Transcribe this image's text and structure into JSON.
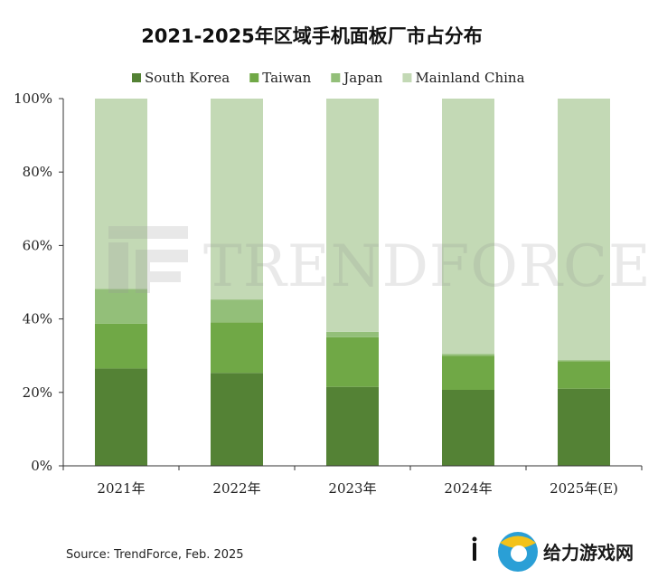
{
  "chart_data": {
    "type": "bar",
    "stacked": true,
    "title": "2021-2025年区域手机面板厂市占分布",
    "categories": [
      "2021年",
      "2022年",
      "2023年",
      "2024年",
      "2025年(E)"
    ],
    "series": [
      {
        "name": "South Korea",
        "color": "#548235",
        "values": [
          26.5,
          25.3,
          21.5,
          20.7,
          21.0
        ]
      },
      {
        "name": "Taiwan",
        "color": "#70a846",
        "values": [
          12.2,
          13.8,
          13.5,
          9.3,
          7.5
        ]
      },
      {
        "name": "Japan",
        "color": "#93bf79",
        "values": [
          9.5,
          6.2,
          1.5,
          0.5,
          0.3
        ]
      },
      {
        "name": "Mainland China",
        "color": "#c3d9b5",
        "values": [
          51.8,
          54.7,
          63.5,
          69.5,
          71.2
        ]
      }
    ],
    "ylim": [
      0,
      100
    ],
    "yticks": [
      "0%",
      "20%",
      "40%",
      "60%",
      "80%",
      "100%"
    ],
    "grid": false,
    "legend_position": "top"
  },
  "watermark": {
    "text": "TRENDFORCE",
    "logo": "trendforce-logo"
  },
  "footer": {
    "source": "Source: TrendForce, Feb. 2025",
    "site_name": "给力游戏网",
    "site_logo": "giliyouxi-logo"
  }
}
